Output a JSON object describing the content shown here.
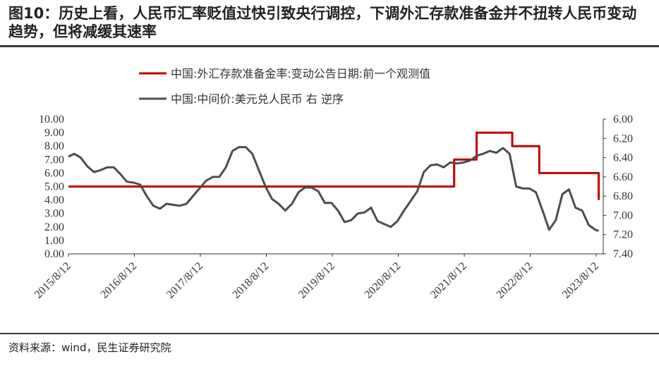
{
  "title": "图10：历史上看，人民币汇率贬值过快引致央行调控，下调外汇存款准备金并不扭转人民币变动趋势，但将减缓其速率",
  "source": "资料来源：wind，民生证券研究院",
  "colors": {
    "rmb": "#4d4d4d",
    "rrr": "#c00000"
  },
  "chart_data": {
    "type": "line",
    "series": [
      {
        "name": "中国:外汇存款准备金率:变动公告日期:前一个观测值",
        "axis": "left",
        "color": "#c00000",
        "step": true,
        "x": [
          2015.613,
          2021.46,
          2021.46,
          2021.8,
          2021.8,
          2022.34,
          2022.34,
          2022.75,
          2022.75,
          2023.65,
          2023.65
        ],
        "values": [
          5.0,
          5.0,
          7.0,
          7.0,
          9.0,
          9.0,
          8.0,
          8.0,
          6.0,
          6.0,
          4.0
        ]
      },
      {
        "name": "中国:中间价:美元兑人民币 右 逆序",
        "axis": "right",
        "color": "#4d4d4d",
        "x": [
          2015.613,
          2015.7,
          2015.8,
          2015.9,
          2016.0,
          2016.1,
          2016.2,
          2016.3,
          2016.4,
          2016.5,
          2016.6,
          2016.7,
          2016.8,
          2016.9,
          2017.0,
          2017.1,
          2017.2,
          2017.3,
          2017.4,
          2017.5,
          2017.6,
          2017.7,
          2017.8,
          2017.9,
          2018.0,
          2018.1,
          2018.2,
          2018.3,
          2018.4,
          2018.5,
          2018.6,
          2018.7,
          2018.8,
          2018.9,
          2019.0,
          2019.1,
          2019.2,
          2019.3,
          2019.4,
          2019.5,
          2019.6,
          2019.7,
          2019.8,
          2019.9,
          2020.0,
          2020.1,
          2020.2,
          2020.3,
          2020.4,
          2020.5,
          2020.6,
          2020.7,
          2020.8,
          2020.9,
          2021.0,
          2021.1,
          2021.2,
          2021.3,
          2021.4,
          2021.5,
          2021.6,
          2021.7,
          2021.8,
          2021.9,
          2022.0,
          2022.1,
          2022.2,
          2022.3,
          2022.4,
          2022.5,
          2022.6,
          2022.7,
          2022.8,
          2022.9,
          2023.0,
          2023.1,
          2023.2,
          2023.3,
          2023.4,
          2023.5,
          2023.6,
          2023.65
        ],
        "values": [
          6.39,
          6.36,
          6.4,
          6.49,
          6.55,
          6.53,
          6.5,
          6.5,
          6.57,
          6.65,
          6.66,
          6.68,
          6.8,
          6.9,
          6.93,
          6.88,
          6.89,
          6.9,
          6.88,
          6.8,
          6.72,
          6.64,
          6.6,
          6.6,
          6.5,
          6.33,
          6.29,
          6.29,
          6.36,
          6.53,
          6.7,
          6.83,
          6.88,
          6.95,
          6.88,
          6.76,
          6.71,
          6.71,
          6.75,
          6.87,
          6.87,
          6.95,
          7.07,
          7.05,
          6.98,
          6.97,
          6.92,
          7.06,
          7.09,
          7.12,
          7.06,
          6.95,
          6.85,
          6.75,
          6.55,
          6.48,
          6.47,
          6.5,
          6.45,
          6.46,
          6.45,
          6.43,
          6.38,
          6.36,
          6.33,
          6.35,
          6.3,
          6.36,
          6.7,
          6.72,
          6.72,
          6.76,
          6.95,
          7.15,
          7.05,
          6.78,
          6.73,
          6.92,
          6.95,
          7.1,
          7.15,
          7.16
        ]
      }
    ],
    "yaxis_left": {
      "range": [
        0,
        10
      ],
      "ticks": [
        "0.00",
        "1.00",
        "2.00",
        "3.00",
        "4.00",
        "5.00",
        "6.00",
        "7.00",
        "8.00",
        "9.00",
        "10.00"
      ]
    },
    "yaxis_right": {
      "range": [
        6.0,
        7.4
      ],
      "inverted": true,
      "ticks": [
        "6.00",
        "6.20",
        "6.40",
        "6.60",
        "6.80",
        "7.00",
        "7.20",
        "7.40"
      ]
    },
    "xaxis": {
      "range": [
        2015.613,
        2023.72
      ],
      "ticks": [
        {
          "label": "2015/8/12",
          "x": 2015.613
        },
        {
          "label": "2016/8/12",
          "x": 2016.613
        },
        {
          "label": "2017/8/12",
          "x": 2017.613
        },
        {
          "label": "2018/8/12",
          "x": 2018.613
        },
        {
          "label": "2019/8/12",
          "x": 2019.613
        },
        {
          "label": "2020/8/12",
          "x": 2020.613
        },
        {
          "label": "2021/8/12",
          "x": 2021.613
        },
        {
          "label": "2022/8/12",
          "x": 2022.613
        },
        {
          "label": "2023/8/12",
          "x": 2023.613
        }
      ]
    },
    "legend": "top-center",
    "grid": false
  }
}
